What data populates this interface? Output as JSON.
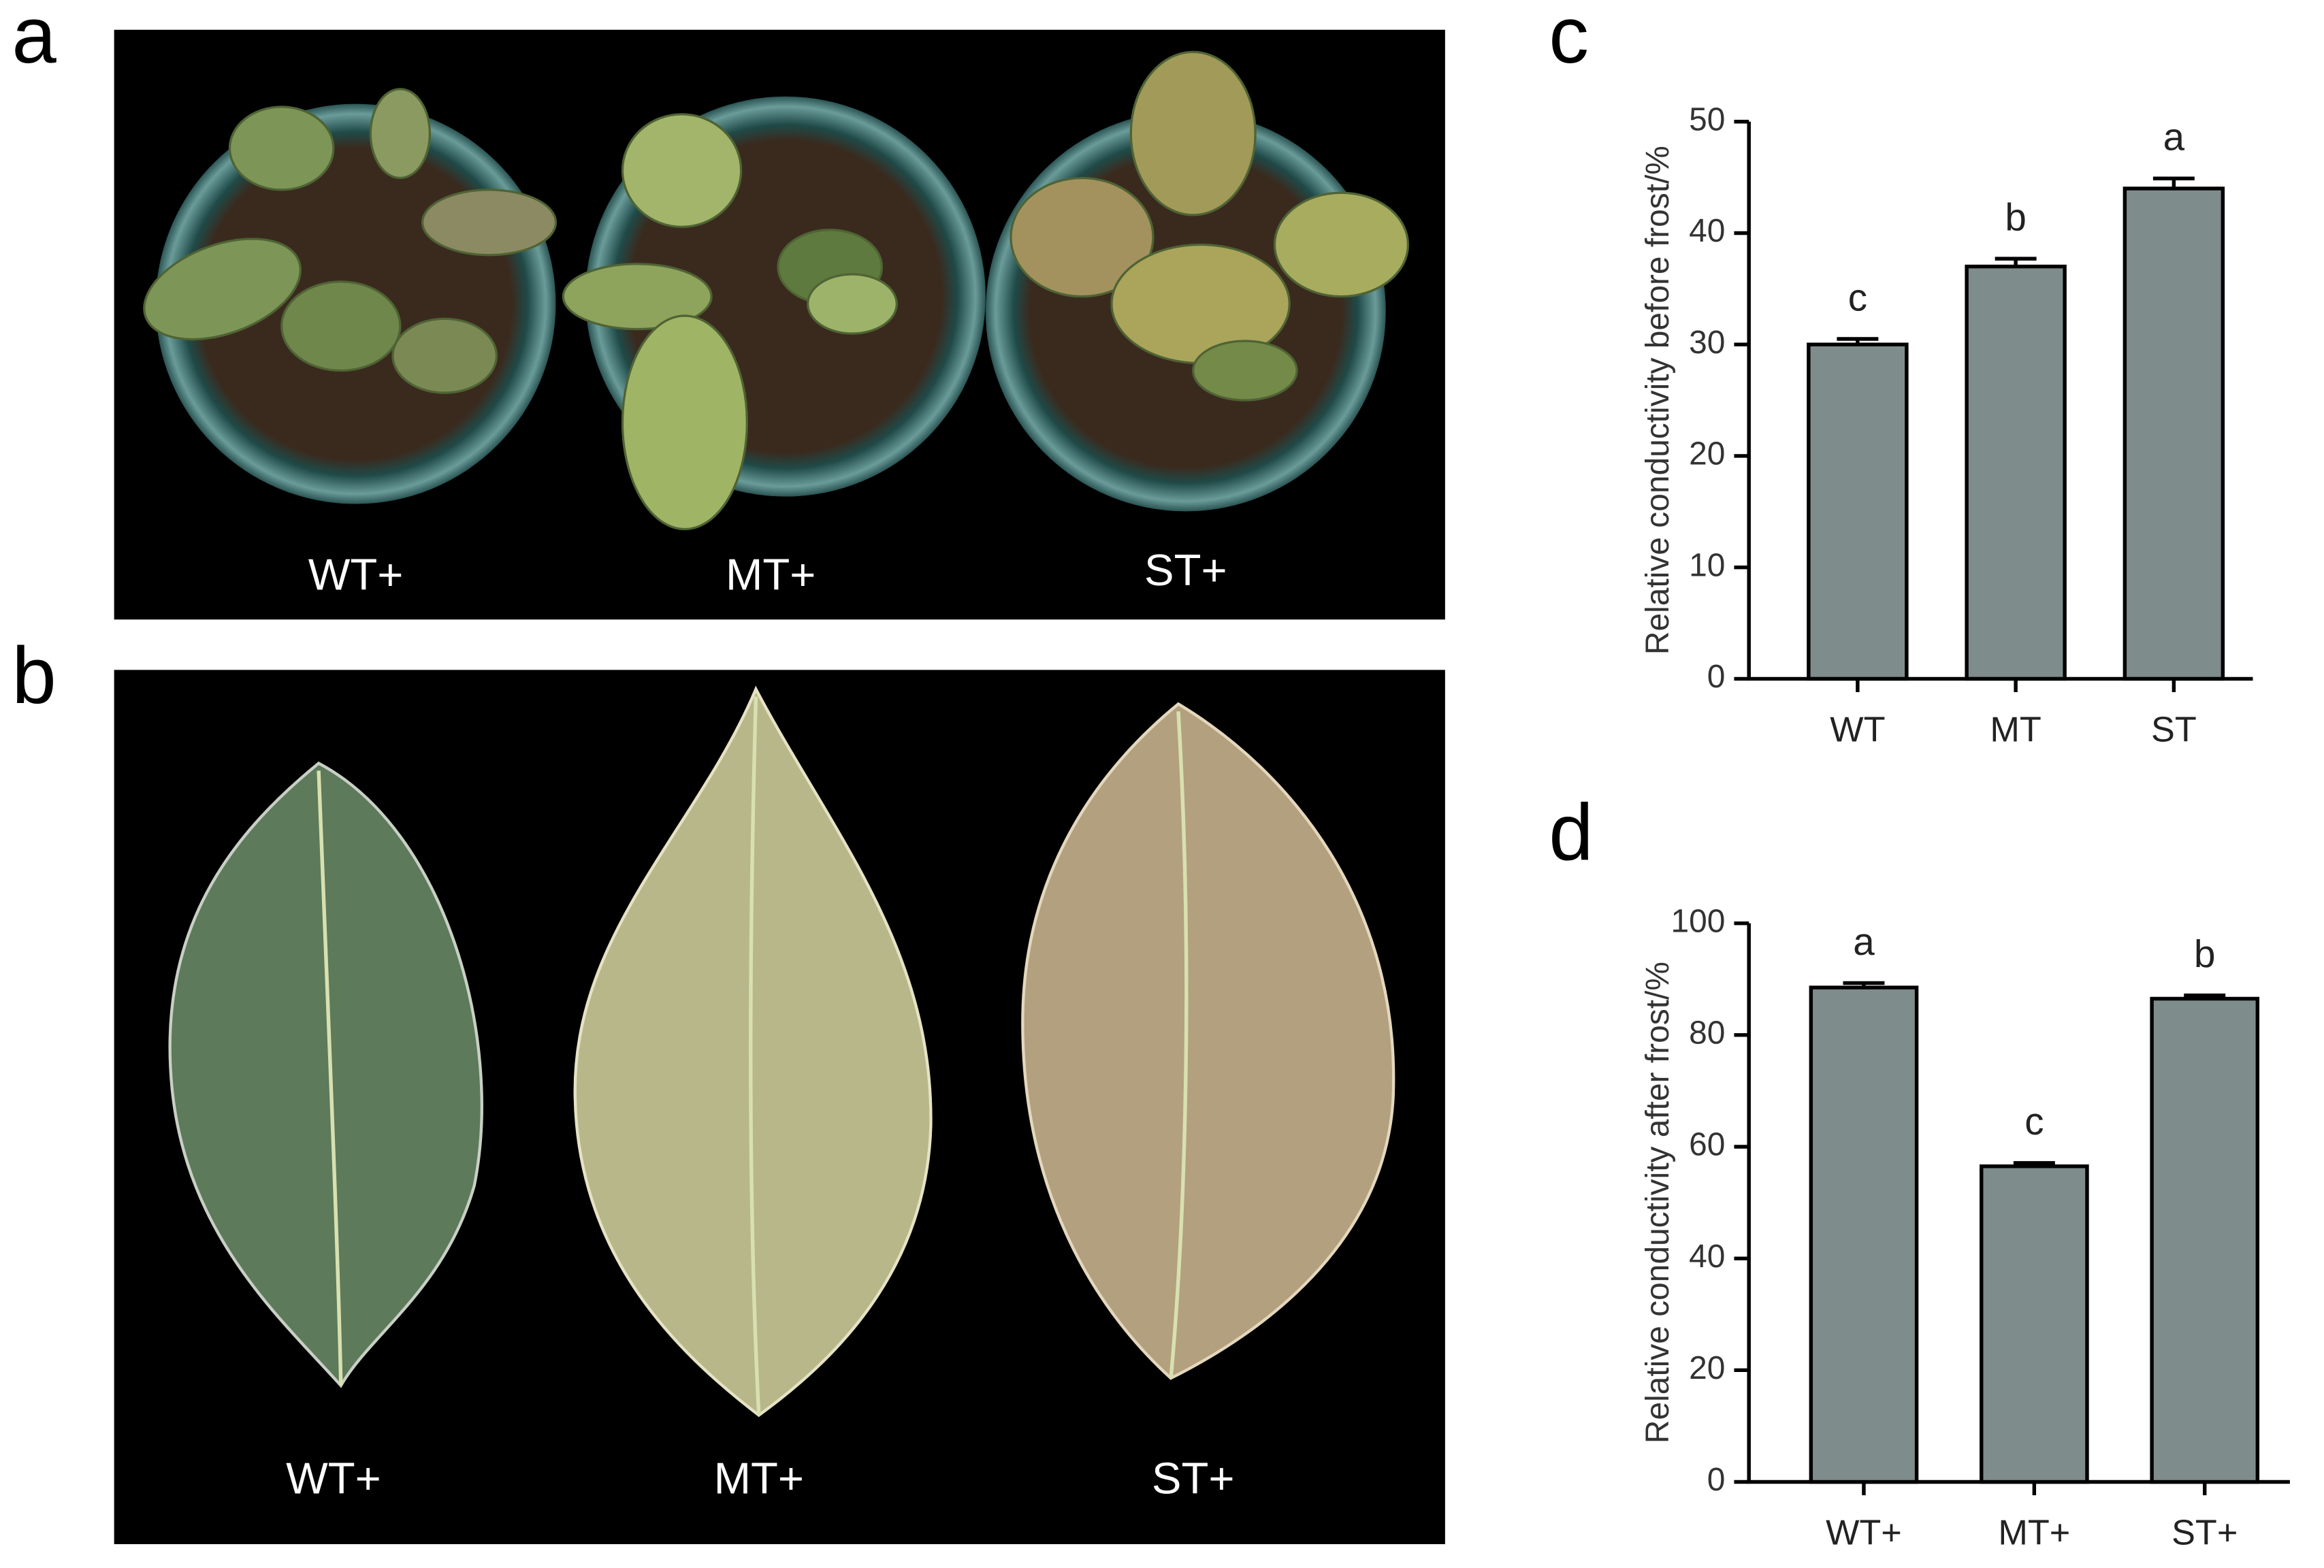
{
  "photo_a": {
    "label": "a",
    "captions": [
      "WT+",
      "MT+",
      "ST+"
    ]
  },
  "photo_b": {
    "label": "b",
    "captions": [
      "WT+",
      "MT+",
      "ST+"
    ]
  },
  "chart_data": [
    {
      "type": "bar",
      "panel_label": "c",
      "ylabel": "Relative conductivity before frost/%",
      "categories": [
        "WT",
        "MT",
        "ST"
      ],
      "values": [
        30,
        37,
        44
      ],
      "errors": [
        0.5,
        0.7,
        0.9
      ],
      "annotations": [
        "c",
        "b",
        "a"
      ],
      "color": "#7f8c8c",
      "ylim": [
        0,
        50
      ],
      "yticks": [
        0,
        10,
        20,
        30,
        40,
        50
      ]
    },
    {
      "type": "bar",
      "panel_label": "d",
      "ylabel": "Relative conductivity after frost/%",
      "categories": [
        "WT+",
        "MT+",
        "ST+"
      ],
      "values": [
        88.5,
        56.5,
        86.5
      ],
      "errors": [
        0.8,
        0.6,
        0.6
      ],
      "annotations": [
        "a",
        "c",
        "b"
      ],
      "color": "#7f8c8c",
      "ylim": [
        0,
        100
      ],
      "yticks": [
        0,
        20,
        40,
        60,
        80,
        100
      ]
    }
  ]
}
